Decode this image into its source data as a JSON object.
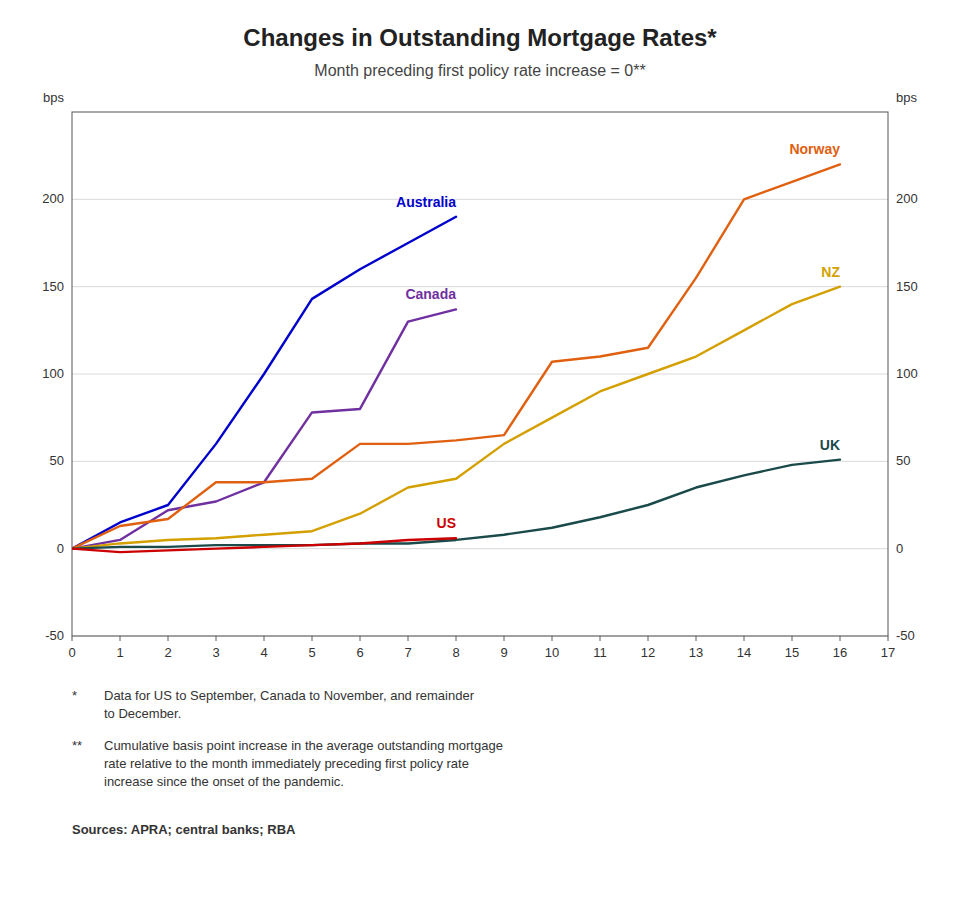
{
  "chart_data": {
    "type": "line",
    "title": "Changes in Outstanding Mortgage Rates*",
    "subtitle": "Month preceding first policy rate increase = 0**",
    "ylabel": "bps",
    "y2label": "bps",
    "xlim": [
      0,
      17
    ],
    "xticks": [
      0,
      1,
      2,
      3,
      4,
      5,
      6,
      7,
      8,
      9,
      10,
      11,
      12,
      13,
      14,
      15,
      16,
      17
    ],
    "ylim": [
      -50,
      250
    ],
    "yticks": [
      -50,
      0,
      50,
      100,
      150,
      200
    ],
    "y2lim": [
      -50,
      250
    ],
    "y2ticks": [
      -50,
      0,
      50,
      100,
      150,
      200
    ],
    "grid": true,
    "series": [
      {
        "name": "Australia",
        "color": "#0000cc",
        "x": [
          0,
          1,
          2,
          3,
          4,
          5,
          6,
          7,
          8
        ],
        "values": [
          0,
          15,
          25,
          60,
          100,
          143,
          160,
          175,
          190
        ]
      },
      {
        "name": "Canada",
        "color": "#7030a0",
        "x": [
          0,
          1,
          2,
          3,
          4,
          5,
          6,
          7,
          8
        ],
        "values": [
          0,
          5,
          22,
          27,
          38,
          78,
          80,
          130,
          137
        ]
      },
      {
        "name": "Norway",
        "color": "#e06010",
        "x": [
          0,
          1,
          2,
          3,
          4,
          5,
          6,
          7,
          8,
          9,
          10,
          11,
          12,
          13,
          14,
          15,
          16
        ],
        "values": [
          0,
          13,
          17,
          38,
          38,
          40,
          60,
          60,
          62,
          65,
          107,
          110,
          115,
          155,
          200,
          210,
          220
        ]
      },
      {
        "name": "NZ",
        "color": "#d4a000",
        "x": [
          0,
          1,
          2,
          3,
          4,
          5,
          6,
          7,
          8,
          9,
          10,
          11,
          12,
          13,
          14,
          15,
          16
        ],
        "values": [
          0,
          3,
          5,
          6,
          8,
          10,
          20,
          35,
          40,
          60,
          75,
          90,
          100,
          110,
          125,
          140,
          150
        ]
      },
      {
        "name": "UK",
        "color": "#1a4a4a",
        "x": [
          0,
          1,
          2,
          3,
          4,
          5,
          6,
          7,
          8,
          9,
          10,
          11,
          12,
          13,
          14,
          15,
          16
        ],
        "values": [
          0,
          1,
          1,
          2,
          2,
          2,
          3,
          3,
          5,
          8,
          12,
          18,
          25,
          35,
          42,
          48,
          51
        ]
      },
      {
        "name": "US",
        "color": "#cc0000",
        "x": [
          0,
          1,
          2,
          3,
          4,
          5,
          6,
          7,
          8
        ],
        "values": [
          0,
          -2,
          -1,
          0,
          1,
          2,
          3,
          5,
          6
        ]
      }
    ],
    "footnotes": [
      {
        "symbol": "*",
        "text": "Data for US to September, Canada to November, and remainder\nto December."
      },
      {
        "symbol": "**",
        "text": "Cumulative basis point increase in the average outstanding mortgage\nrate relative to the month immediately preceding first policy rate\nincrease since the onset of the pandemic."
      }
    ],
    "sources": "Sources: APRA; central banks; RBA"
  }
}
